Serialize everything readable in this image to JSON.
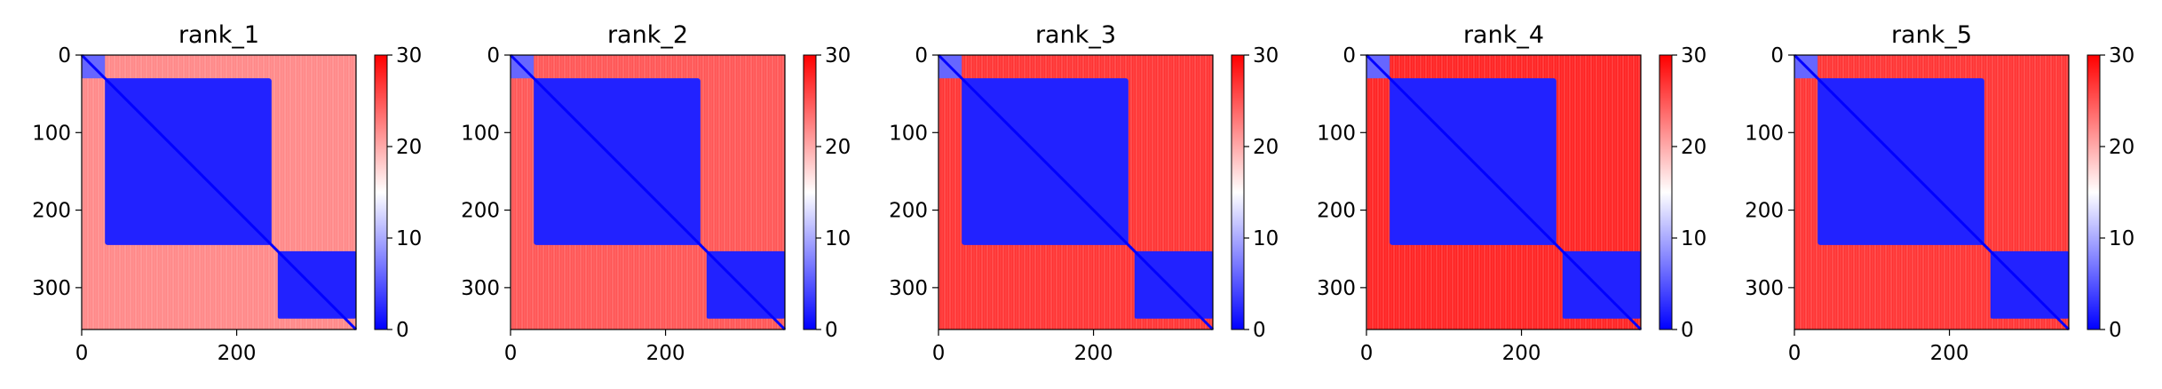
{
  "chart_data": {
    "type": "heatmap",
    "colormap": {
      "low": "#0000ff",
      "mid": "#ffffff",
      "high": "#ff0000"
    },
    "colorbar": {
      "min": 0,
      "max": 30,
      "ticks": [
        "0",
        "10",
        "20",
        "30"
      ]
    },
    "matrix_size": 354,
    "x_ticks": [
      "0",
      "200"
    ],
    "y_ticks": [
      "0",
      "100",
      "200",
      "300"
    ],
    "domain_boundary": 245,
    "block_value": 2,
    "off_block_value": 27,
    "panels": [
      {
        "title": "rank_1",
        "off_block_value": 22
      },
      {
        "title": "rank_2",
        "off_block_value": 25
      },
      {
        "title": "rank_3",
        "off_block_value": 27
      },
      {
        "title": "rank_4",
        "off_block_value": 28
      },
      {
        "title": "rank_5",
        "off_block_value": 27
      }
    ]
  }
}
